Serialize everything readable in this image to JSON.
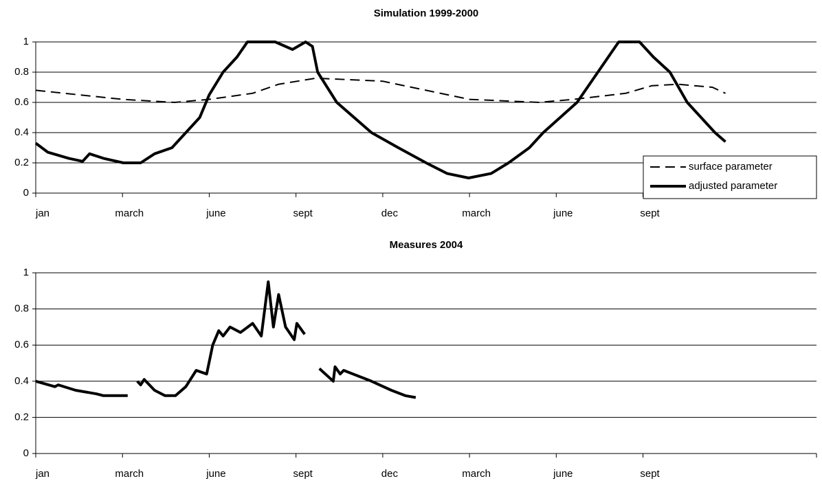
{
  "chart_data": [
    {
      "type": "line",
      "title": "Simulation 1999-2000",
      "xlim": [
        0,
        9
      ],
      "xticks": [
        {
          "value": 0,
          "label": "jan"
        },
        {
          "value": 1,
          "label": "march"
        },
        {
          "value": 2,
          "label": "june"
        },
        {
          "value": 3,
          "label": "sept"
        },
        {
          "value": 4,
          "label": "dec"
        },
        {
          "value": 5,
          "label": "march"
        },
        {
          "value": 6,
          "label": "june"
        },
        {
          "value": 7,
          "label": "sept"
        }
      ],
      "ylim": [
        0,
        1
      ],
      "yticks": [
        0,
        0.2,
        0.4,
        0.6,
        0.8,
        1
      ],
      "grid": true,
      "legend": "lower right",
      "series": [
        {
          "name": "surface parameter",
          "color": "#000000",
          "dash": true,
          "x": [
            0,
            0.5,
            1.0,
            1.6,
            2.0,
            2.5,
            2.8,
            3.23,
            4.0,
            4.5,
            5.0,
            5.8,
            6.2,
            6.8,
            7.1,
            7.4,
            7.8,
            7.95
          ],
          "values": [
            0.68,
            0.65,
            0.62,
            0.6,
            0.62,
            0.66,
            0.72,
            0.76,
            0.74,
            0.68,
            0.62,
            0.6,
            0.62,
            0.66,
            0.71,
            0.72,
            0.7,
            0.66
          ]
        },
        {
          "name": "adjusted parameter",
          "color": "#000000",
          "dash": false,
          "x": [
            0,
            0.14,
            0.38,
            0.54,
            0.62,
            0.78,
            1.01,
            1.21,
            1.37,
            1.57,
            1.73,
            1.89,
            2.0,
            2.16,
            2.32,
            2.44,
            2.76,
            2.96,
            3.11,
            3.19,
            3.25,
            3.47,
            3.87,
            4.18,
            4.5,
            4.74,
            4.99,
            5.25,
            5.45,
            5.69,
            5.85,
            6.24,
            6.48,
            6.72,
            6.96,
            7.12,
            7.31,
            7.51,
            7.67,
            7.83,
            7.95
          ],
          "values": [
            0.33,
            0.27,
            0.23,
            0.21,
            0.26,
            0.23,
            0.2,
            0.2,
            0.26,
            0.3,
            0.4,
            0.5,
            0.65,
            0.8,
            0.9,
            1.0,
            1.0,
            0.95,
            1.0,
            0.97,
            0.8,
            0.6,
            0.4,
            0.3,
            0.2,
            0.13,
            0.1,
            0.13,
            0.2,
            0.3,
            0.4,
            0.6,
            0.8,
            1.0,
            1.0,
            0.9,
            0.8,
            0.6,
            0.5,
            0.4,
            0.34
          ]
        }
      ]
    },
    {
      "type": "line",
      "title": "Measures 2004",
      "xlim": [
        0,
        9
      ],
      "xticks": [
        {
          "value": 0,
          "label": "jan"
        },
        {
          "value": 1,
          "label": "march"
        },
        {
          "value": 2,
          "label": "june"
        },
        {
          "value": 3,
          "label": "sept"
        },
        {
          "value": 4,
          "label": "dec"
        },
        {
          "value": 5,
          "label": "march"
        },
        {
          "value": 6,
          "label": "june"
        },
        {
          "value": 7,
          "label": "sept"
        }
      ],
      "ylim": [
        0,
        1
      ],
      "yticks": [
        0,
        0.2,
        0.4,
        0.6,
        0.8,
        1
      ],
      "grid": true,
      "series": [
        {
          "color": "#000000",
          "dash": false,
          "x": [
            0,
            0.22,
            0.26,
            0.46,
            0.7,
            0.78,
            1.06,
            1.08,
            1.17,
            1.21,
            1.25,
            1.37,
            1.49,
            1.61,
            1.73,
            1.85,
            1.97,
            2.04,
            2.11,
            2.16,
            2.24,
            2.36,
            2.5,
            2.6,
            2.68,
            2.74,
            2.8,
            2.88,
            2.98,
            3.01,
            3.1,
            3.18,
            3.27,
            3.43,
            3.45,
            3.51,
            3.55,
            3.87,
            4.1,
            4.26,
            4.38
          ],
          "values": [
            0.4,
            0.37,
            0.38,
            0.35,
            0.33,
            0.32,
            0.32,
            null,
            0.4,
            0.38,
            0.41,
            0.35,
            0.32,
            0.32,
            0.37,
            0.46,
            0.44,
            0.6,
            0.68,
            0.65,
            0.7,
            0.67,
            0.72,
            0.65,
            0.95,
            0.7,
            0.88,
            0.7,
            0.63,
            0.72,
            0.66,
            null,
            0.47,
            0.4,
            0.48,
            0.44,
            0.46,
            0.4,
            0.35,
            0.32,
            0.31
          ]
        }
      ]
    }
  ]
}
